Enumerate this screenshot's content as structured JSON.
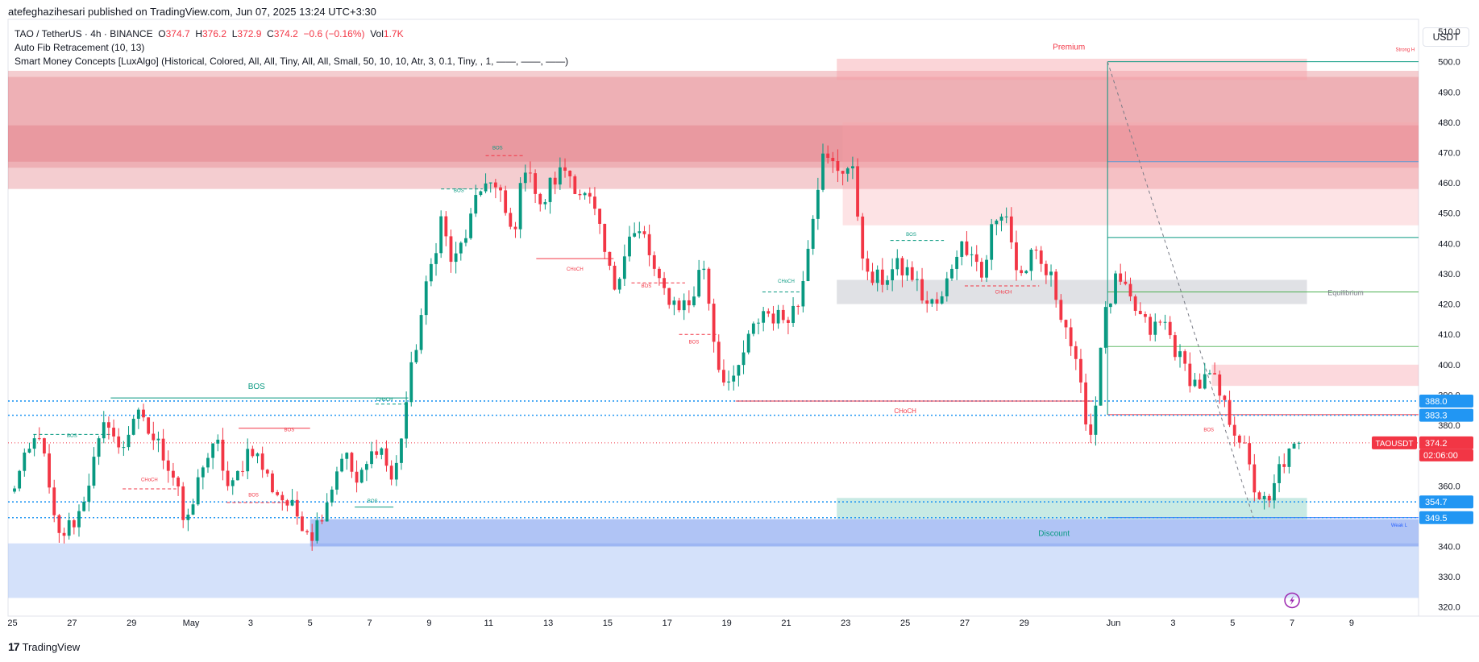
{
  "header": {
    "publisher_line": "atefeghazihesari published on TradingView.com, Jun 07, 2025 13:24 UTC+3:30"
  },
  "legend": {
    "symbol": "TAO / TetherUS · 4h · BINANCE",
    "o_label": "O",
    "o_value": "374.7",
    "h_label": "H",
    "h_value": "376.2",
    "l_label": "L",
    "l_value": "372.9",
    "c_label": "C",
    "c_value": "374.2",
    "change": "−0.6 (−0.16%)",
    "vol_label": "Vol",
    "vol_value": "1.7K",
    "indicator1": "Auto Fib Retracement (10, 13)",
    "indicator2": "Smart Money Concepts [LuxAlgo] (Historical, Colored, All, All, Tiny, All, All, Small, 50, 10, 10, Atr, 3, 0.1, Tiny, , 1, ——, ——, ——)"
  },
  "currency": "USDT",
  "footer": {
    "brand": "TradingView",
    "brand_mark": "17"
  },
  "colors": {
    "up": "#089981",
    "down": "#f23645",
    "supply": "#e0737b",
    "demand": "#a9c4f5",
    "blue_line": "#2962ff"
  },
  "chart_data": {
    "type": "candlestick",
    "symbol": "TAOUSDT",
    "ylim": [
      317,
      514
    ],
    "y_ticks": [
      320,
      330,
      340,
      350,
      360,
      370,
      380,
      390,
      400,
      410,
      420,
      430,
      440,
      450,
      460,
      470,
      480,
      490,
      500,
      510
    ],
    "x_ticks": [
      {
        "label": "25",
        "x": 0
      },
      {
        "label": "27",
        "x": 2
      },
      {
        "label": "29",
        "x": 4
      },
      {
        "label": "May",
        "x": 6
      },
      {
        "label": "3",
        "x": 8
      },
      {
        "label": "5",
        "x": 10
      },
      {
        "label": "7",
        "x": 12
      },
      {
        "label": "9",
        "x": 14
      },
      {
        "label": "11",
        "x": 16
      },
      {
        "label": "13",
        "x": 18
      },
      {
        "label": "15",
        "x": 20
      },
      {
        "label": "17",
        "x": 22
      },
      {
        "label": "19",
        "x": 24
      },
      {
        "label": "21",
        "x": 26
      },
      {
        "label": "23",
        "x": 28
      },
      {
        "label": "25",
        "x": 30
      },
      {
        "label": "27",
        "x": 32
      },
      {
        "label": "29",
        "x": 34
      },
      {
        "label": "Jun",
        "x": 37
      },
      {
        "label": "3",
        "x": 39
      },
      {
        "label": "5",
        "x": 41
      },
      {
        "label": "7",
        "x": 43
      },
      {
        "label": "9",
        "x": 45
      }
    ],
    "x_range": [
      -0.15,
      47.25
    ],
    "price_labels": [
      {
        "value": 388.0,
        "text": "388.0",
        "color": "#2196f3"
      },
      {
        "value": 383.3,
        "text": "383.3",
        "color": "#2196f3"
      },
      {
        "value": 374.2,
        "text": "374.2",
        "color": "#f23645",
        "tag": "TAOUSDT",
        "countdown": "02:06:00"
      },
      {
        "value": 354.7,
        "text": "354.7",
        "color": "#2196f3"
      },
      {
        "value": 349.5,
        "text": "349.5",
        "color": "#2196f3"
      }
    ],
    "anchors": [
      [
        -0.1,
        357
      ],
      [
        0.9,
        378
      ],
      [
        1.5,
        342
      ],
      [
        2.2,
        350
      ],
      [
        3.2,
        383
      ],
      [
        3.6,
        370
      ],
      [
        4.1,
        384
      ],
      [
        5.0,
        372
      ],
      [
        5.6,
        360
      ],
      [
        5.8,
        343
      ],
      [
        6.4,
        368
      ],
      [
        6.9,
        373
      ],
      [
        7.3,
        357
      ],
      [
        8.0,
        374
      ],
      [
        8.7,
        360
      ],
      [
        9.6,
        350
      ],
      [
        10.1,
        344
      ],
      [
        10.8,
        362
      ],
      [
        11.1,
        372
      ],
      [
        11.6,
        360
      ],
      [
        12.3,
        375
      ],
      [
        12.8,
        360
      ],
      [
        13.3,
        392
      ],
      [
        13.8,
        420
      ],
      [
        14.4,
        448
      ],
      [
        14.8,
        432
      ],
      [
        15.3,
        445
      ],
      [
        15.9,
        462
      ],
      [
        16.4,
        455
      ],
      [
        16.8,
        442
      ],
      [
        17.3,
        470
      ],
      [
        17.7,
        450
      ],
      [
        18.1,
        460
      ],
      [
        18.6,
        465
      ],
      [
        19.0,
        458
      ],
      [
        19.5,
        452
      ],
      [
        20.2,
        425
      ],
      [
        20.7,
        442
      ],
      [
        21.2,
        443
      ],
      [
        21.7,
        426
      ],
      [
        22.3,
        420
      ],
      [
        22.8,
        420
      ],
      [
        23.2,
        435
      ],
      [
        23.7,
        400
      ],
      [
        24.2,
        392
      ],
      [
        24.6,
        405
      ],
      [
        25.2,
        418
      ],
      [
        25.8,
        415
      ],
      [
        26.4,
        420
      ],
      [
        26.8,
        445
      ],
      [
        27.2,
        468
      ],
      [
        27.7,
        465
      ],
      [
        28.2,
        465
      ],
      [
        28.7,
        428
      ],
      [
        29.2,
        428
      ],
      [
        29.7,
        432
      ],
      [
        30.2,
        430
      ],
      [
        30.7,
        420
      ],
      [
        31.2,
        420
      ],
      [
        31.7,
        438
      ],
      [
        32.2,
        440
      ],
      [
        32.6,
        428
      ],
      [
        32.9,
        445
      ],
      [
        33.4,
        450
      ],
      [
        33.8,
        428
      ],
      [
        34.3,
        436
      ],
      [
        34.9,
        428
      ],
      [
        35.5,
        410
      ],
      [
        36.0,
        386
      ],
      [
        36.3,
        375
      ],
      [
        36.6,
        412
      ],
      [
        37.1,
        428
      ],
      [
        37.6,
        420
      ],
      [
        38.2,
        411
      ],
      [
        38.7,
        414
      ],
      [
        39.3,
        400
      ],
      [
        39.8,
        393
      ],
      [
        40.3,
        396
      ],
      [
        40.8,
        384
      ],
      [
        41.3,
        375
      ],
      [
        41.7,
        360
      ],
      [
        42.2,
        352
      ],
      [
        42.6,
        367
      ],
      [
        43.1,
        372
      ],
      [
        43.35,
        374.2
      ]
    ],
    "last_close": 374.2,
    "zones": [
      {
        "x0": -0.15,
        "x1": 47.25,
        "y0": 458,
        "y1": 497,
        "color": "#d94a55",
        "alpha": 0.28
      },
      {
        "x0": -0.15,
        "x1": 47.25,
        "y0": 465,
        "y1": 495,
        "color": "#d94a55",
        "alpha": 0.22
      },
      {
        "x0": -0.15,
        "x1": 47.25,
        "y0": 467,
        "y1": 479,
        "color": "#d94a55",
        "alpha": 0.22
      },
      {
        "x0": 27.9,
        "x1": 47.25,
        "y0": 446,
        "y1": 480,
        "color": "#f7a1a9",
        "alpha": 0.3
      },
      {
        "x0": 27.7,
        "x1": 43.5,
        "y0": 494,
        "y1": 501,
        "color": "#f7a1a9",
        "alpha": 0.45
      },
      {
        "x0": 27.7,
        "x1": 43.5,
        "y0": 420,
        "y1": 428,
        "color": "#b2b5be",
        "alpha": 0.4
      },
      {
        "x0": 27.7,
        "x1": 43.5,
        "y0": 349,
        "y1": 356,
        "color": "#22ab94",
        "alpha": 0.25
      },
      {
        "x0": 40.3,
        "x1": 47.25,
        "y0": 393,
        "y1": 400,
        "color": "#f7a1a9",
        "alpha": 0.4
      },
      {
        "x0": -0.15,
        "x1": 47.25,
        "y0": 323,
        "y1": 341,
        "color": "#a9c4f5",
        "alpha": 0.5
      },
      {
        "x0": 10.0,
        "x1": 47.25,
        "y0": 340,
        "y1": 349,
        "color": "#6f93ec",
        "alpha": 0.55
      }
    ],
    "level_lines": [
      {
        "y": 388.0,
        "x0": -0.15,
        "color": "#2196f3",
        "dash": "2,3",
        "width": 1.6
      },
      {
        "y": 383.3,
        "x0": -0.15,
        "color": "#2196f3",
        "dash": "2,3",
        "width": 1.6
      },
      {
        "y": 354.7,
        "x0": -0.15,
        "color": "#2196f3",
        "dash": "2,3",
        "width": 1.6
      },
      {
        "y": 349.5,
        "x0": -0.15,
        "color": "#2196f3",
        "dash": "2,3",
        "width": 1.6
      },
      {
        "y": 374.2,
        "x0": -0.15,
        "color": "#f23645",
        "dash": "1,3",
        "width": 1
      }
    ],
    "fib_lines": [
      {
        "y": 500,
        "x0": 36.8,
        "color": "#089981"
      },
      {
        "y": 442,
        "x0": 36.8,
        "color": "#089981"
      },
      {
        "y": 424,
        "x0": 36.8,
        "color": "#4caf50"
      },
      {
        "y": 406,
        "x0": 36.8,
        "color": "#66bb6a"
      },
      {
        "y": 383.5,
        "x0": 36.8,
        "color": "#f23645"
      },
      {
        "y": 467,
        "x0": 36.8,
        "color": "#5b9bd5"
      },
      {
        "y": 349.5,
        "x0": 36.8,
        "color": "#2962ff"
      }
    ],
    "annotations": [
      {
        "text": "Premium",
        "x": 35.5,
        "y": 504,
        "color": "#f23645",
        "size": 10
      },
      {
        "text": "Strong H",
        "x": 46.8,
        "y": 503.5,
        "color": "#f23645",
        "size": 6
      },
      {
        "text": "Equilibrium",
        "x": 44.8,
        "y": 423,
        "color": "#787b86",
        "size": 9
      },
      {
        "text": "Discount",
        "x": 35.0,
        "y": 343.5,
        "color": "#089981",
        "size": 10
      },
      {
        "text": "Weak L",
        "x": 46.6,
        "y": 346.5,
        "color": "#2962ff",
        "size": 6
      },
      {
        "text": "BOS",
        "x": 8.2,
        "y": 392,
        "color": "#089981",
        "size": 10
      },
      {
        "text": "BOS",
        "x": 2.0,
        "y": 376,
        "color": "#089981",
        "size": 6
      },
      {
        "text": "CHoCH",
        "x": 12.5,
        "y": 388,
        "color": "#089981",
        "size": 6
      },
      {
        "text": "CHoCH",
        "x": 4.6,
        "y": 361.5,
        "color": "#f23645",
        "size": 6
      },
      {
        "text": "BOS",
        "x": 8.1,
        "y": 356.5,
        "color": "#f23645",
        "size": 6
      },
      {
        "text": "BOS",
        "x": 9.3,
        "y": 378,
        "color": "#f23645",
        "size": 6
      },
      {
        "text": "BOS",
        "x": 12.1,
        "y": 354.5,
        "color": "#089981",
        "size": 6
      },
      {
        "text": "BOS",
        "x": 15.0,
        "y": 457,
        "color": "#089981",
        "size": 6
      },
      {
        "text": "BOS",
        "x": 16.3,
        "y": 471,
        "color": "#089981",
        "size": 6
      },
      {
        "text": "CHoCH",
        "x": 18.9,
        "y": 431,
        "color": "#f23645",
        "size": 6
      },
      {
        "text": "BOS",
        "x": 21.3,
        "y": 425.5,
        "color": "#f23645",
        "size": 6
      },
      {
        "text": "BOS",
        "x": 22.9,
        "y": 407,
        "color": "#f23645",
        "size": 6
      },
      {
        "text": "CHoCH",
        "x": 26.0,
        "y": 427,
        "color": "#089981",
        "size": 6
      },
      {
        "text": "BOS",
        "x": 30.2,
        "y": 442.5,
        "color": "#089981",
        "size": 6
      },
      {
        "text": "CHoCH",
        "x": 33.3,
        "y": 423.5,
        "color": "#f23645",
        "size": 6
      },
      {
        "text": "CHoCH",
        "x": 30.0,
        "y": 384,
        "color": "#f23645",
        "size": 8
      },
      {
        "text": "BOS",
        "x": 40.2,
        "y": 378,
        "color": "#f23645",
        "size": 6
      }
    ],
    "structure_lines": [
      {
        "x0": 3.3,
        "x1": 13.3,
        "y": 389,
        "color": "#089981",
        "dash": ""
      },
      {
        "x0": 0.7,
        "x1": 3.3,
        "y": 377,
        "color": "#089981",
        "dash": "4,3"
      },
      {
        "x0": 12.2,
        "x1": 13.3,
        "y": 387,
        "color": "#089981",
        "dash": "4,3"
      },
      {
        "x0": 3.7,
        "x1": 5.5,
        "y": 359,
        "color": "#f23645",
        "dash": "4,3"
      },
      {
        "x0": 7.6,
        "x1": 10.0,
        "y": 379,
        "color": "#f23645",
        "dash": ""
      },
      {
        "x0": 7.2,
        "x1": 9.3,
        "y": 354.5,
        "color": "#f23645",
        "dash": "4,3"
      },
      {
        "x0": 11.5,
        "x1": 12.8,
        "y": 353,
        "color": "#089981",
        "dash": ""
      },
      {
        "x0": 14.4,
        "x1": 15.8,
        "y": 458,
        "color": "#089981",
        "dash": "4,3"
      },
      {
        "x0": 15.9,
        "x1": 17.2,
        "y": 469,
        "color": "#f23645",
        "dash": "4,3"
      },
      {
        "x0": 17.6,
        "x1": 20.2,
        "y": 435,
        "color": "#f23645",
        "dash": ""
      },
      {
        "x0": 20.8,
        "x1": 22.6,
        "y": 427,
        "color": "#f23645",
        "dash": "4,3"
      },
      {
        "x0": 22.4,
        "x1": 23.7,
        "y": 410,
        "color": "#f23645",
        "dash": "4,3"
      },
      {
        "x0": 25.2,
        "x1": 26.5,
        "y": 424,
        "color": "#089981",
        "dash": "4,3"
      },
      {
        "x0": 24.3,
        "x1": 36.3,
        "y": 388,
        "color": "#f23645",
        "dash": ""
      },
      {
        "x0": 29.5,
        "x1": 31.3,
        "y": 441,
        "color": "#089981",
        "dash": "4,3"
      },
      {
        "x0": 32.0,
        "x1": 34.5,
        "y": 426,
        "color": "#f23645",
        "dash": "4,3"
      }
    ],
    "diagonal": {
      "x0": 36.8,
      "y0": 500,
      "x1": 41.7,
      "y1": 349.5,
      "color": "#787b86"
    }
  }
}
